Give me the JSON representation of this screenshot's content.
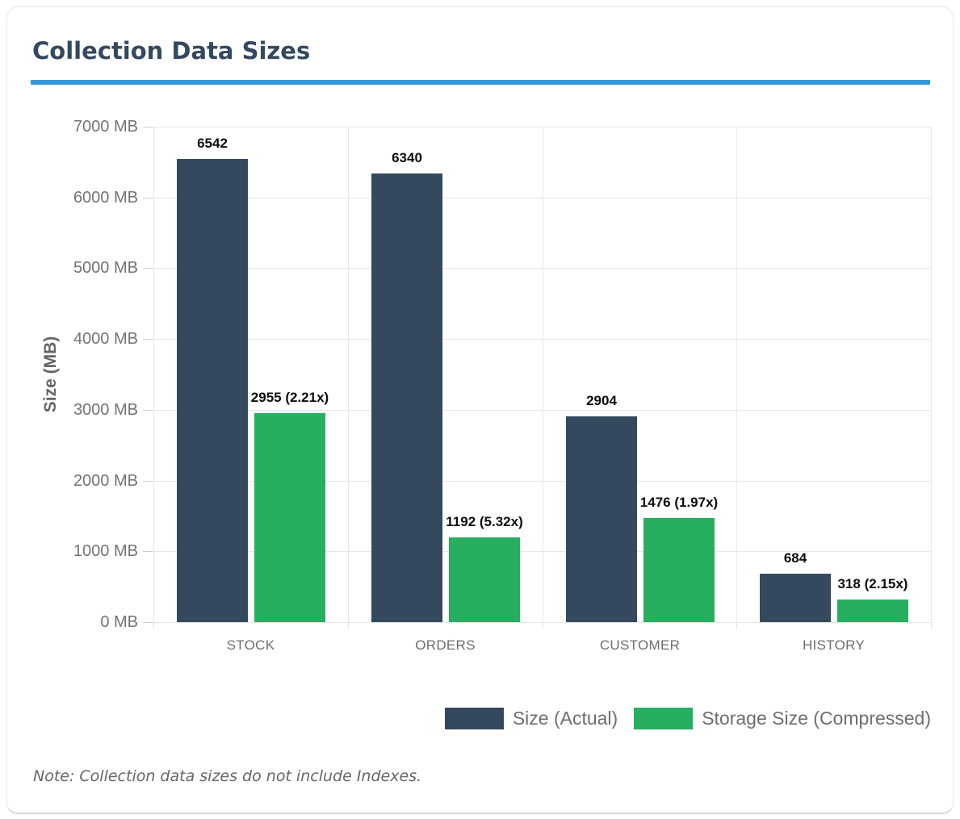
{
  "card": {
    "title": "Collection Data Sizes",
    "accent_color": "#3498db",
    "note": "Note: Collection data sizes do not include Indexes."
  },
  "chart_data": {
    "type": "bar",
    "title": "Collection Data Sizes",
    "categories": [
      "STOCK",
      "ORDERS",
      "CUSTOMER",
      "HISTORY"
    ],
    "series": [
      {
        "name": "Size (Actual)",
        "color": "#34495e",
        "values": [
          6542,
          6340,
          2904,
          684
        ],
        "labels": [
          "6542",
          "6340",
          "2904",
          "684"
        ]
      },
      {
        "name": "Storage Size (Compressed)",
        "color": "#27ae60",
        "values": [
          2955,
          1192,
          1476,
          318
        ],
        "labels": [
          "2955 (2.21x)",
          "1192 (5.32x)",
          "1476 (1.97x)",
          "318 (2.15x)"
        ]
      }
    ],
    "ylabel": "Size (MB)",
    "ylim": [
      0,
      7000
    ],
    "ytick_step": 1000,
    "ytick_suffix": " MB",
    "grid": true,
    "legend_position": "bottom-right"
  }
}
